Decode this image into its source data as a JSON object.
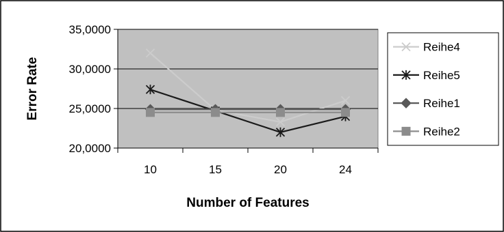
{
  "chart_data": {
    "type": "line",
    "title": "",
    "xlabel": "Number of Features",
    "ylabel": "Error Rate",
    "categories": [
      "10",
      "15",
      "20",
      "24"
    ],
    "ylim": [
      20,
      35
    ],
    "yticks": [
      20,
      25,
      30,
      35
    ],
    "ytick_labels": [
      "20,0000",
      "25,0000",
      "30,0000",
      "35,0000"
    ],
    "grid": true,
    "plot_background": "#c0c0c0",
    "legend_position": "right",
    "series": [
      {
        "name": "Reihe4",
        "values": [
          32.0,
          24.8,
          23.3,
          26.0
        ],
        "color": "#cccccc",
        "marker": "x"
      },
      {
        "name": "Reihe5",
        "values": [
          27.4,
          24.7,
          22.0,
          24.0
        ],
        "color": "#1a1a1a",
        "marker": "star"
      },
      {
        "name": "Reihe1",
        "values": [
          24.9,
          24.9,
          24.9,
          24.9
        ],
        "color": "#595959",
        "marker": "diamond"
      },
      {
        "name": "Reihe2",
        "values": [
          24.5,
          24.5,
          24.5,
          24.5
        ],
        "color": "#8c8c8c",
        "marker": "square"
      }
    ]
  }
}
